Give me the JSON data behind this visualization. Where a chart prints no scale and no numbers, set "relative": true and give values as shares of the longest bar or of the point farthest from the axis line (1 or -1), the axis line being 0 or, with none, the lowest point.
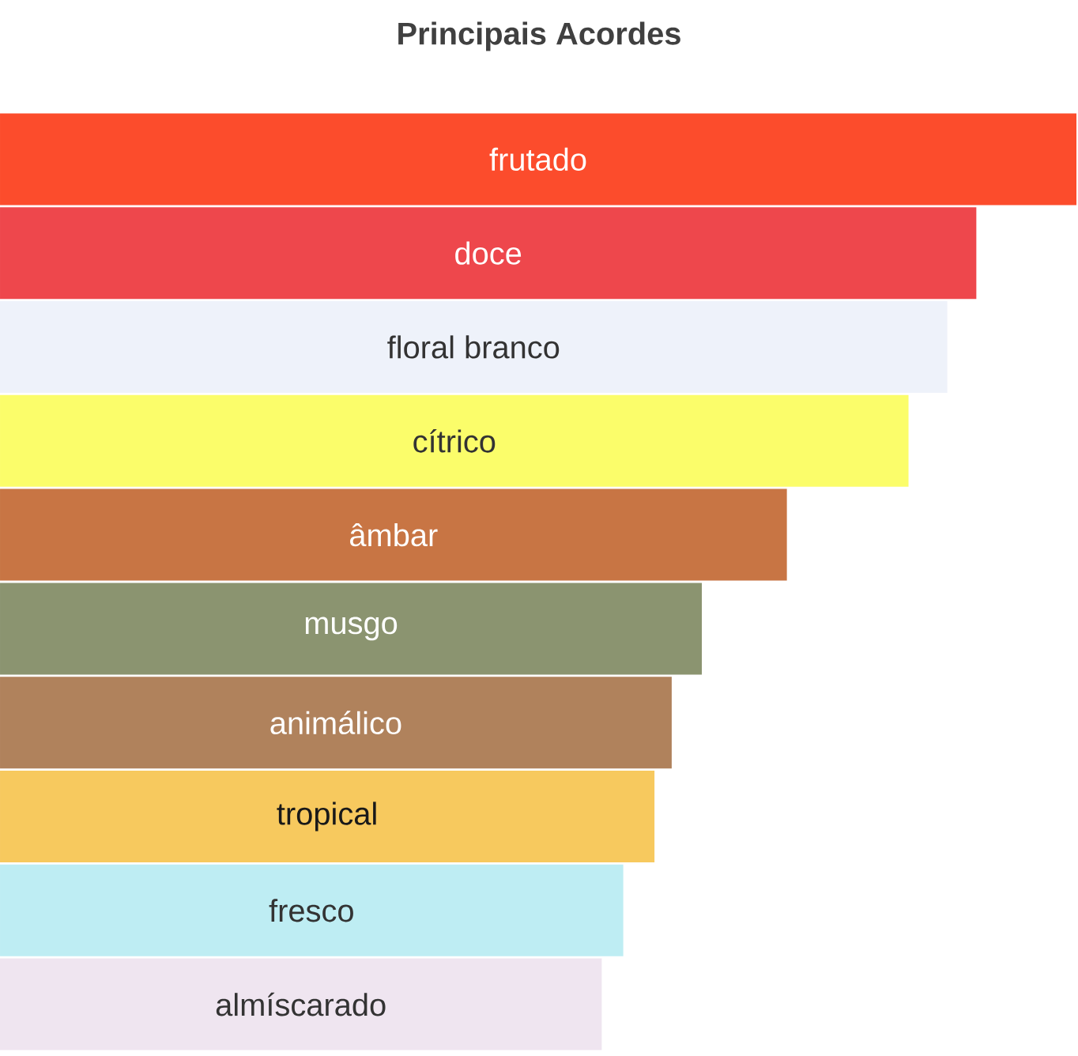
{
  "chart_data": {
    "type": "bar",
    "orientation": "horizontal",
    "relative": true,
    "title": "Principais Acordes",
    "categories": [
      "frutado",
      "doce",
      "floral branco",
      "cítrico",
      "âmbar",
      "musgo",
      "animálico",
      "tropical",
      "fresco",
      "almíscarado"
    ],
    "values": [
      1,
      0.907,
      0.88,
      0.844,
      0.731,
      0.652,
      0.624,
      0.608,
      0.579,
      0.559
    ],
    "colors": [
      "#fc4c2c",
      "#ee474c",
      "#eef2fa",
      "#fbfd6a",
      "#c87544",
      "#8b9470",
      "#b0825c",
      "#f7c95e",
      "#beedf3",
      "#efe5f0"
    ]
  }
}
